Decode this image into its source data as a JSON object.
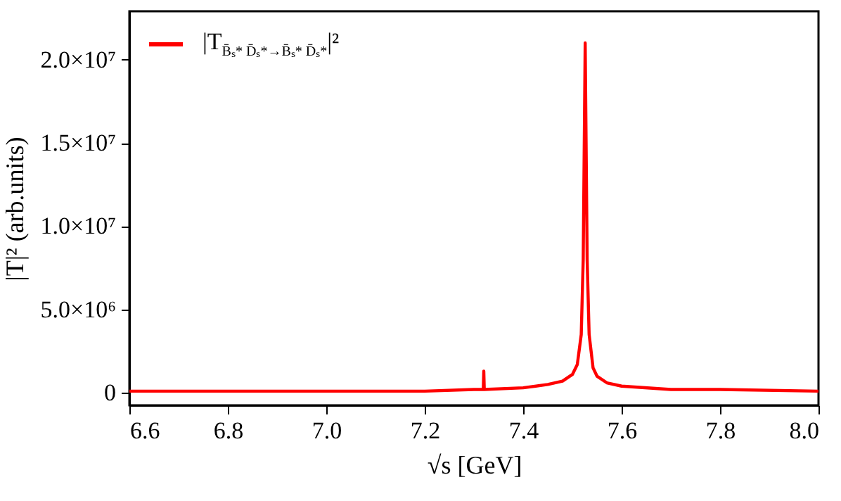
{
  "chart_data": {
    "type": "line",
    "xlabel": "√s [GeV]",
    "ylabel": "|T|² (arb.units)",
    "x": [
      6.6,
      6.8,
      7.0,
      7.2,
      7.3,
      7.319,
      7.32,
      7.321,
      7.4,
      7.45,
      7.48,
      7.5,
      7.51,
      7.518,
      7.522,
      7.526,
      7.53,
      7.534,
      7.542,
      7.55,
      7.57,
      7.6,
      7.7,
      7.8,
      8.0
    ],
    "series": [
      {
        "name": "|T$_{B̄ₛ* D̄ₛ*→B̄ₛ* D̄ₛ*}$|²",
        "color": "#ff0000",
        "values": [
          100000,
          100000,
          100000,
          100000,
          200000,
          200000,
          1300000,
          200000,
          300000,
          500000,
          700000,
          1100000,
          1700000,
          3500000,
          8000000,
          21000000,
          8000000,
          3500000,
          1500000,
          1000000,
          600000,
          400000,
          200000,
          200000,
          100000
        ]
      }
    ],
    "xlim": [
      6.6,
      8.0
    ],
    "xticks": [
      6.6,
      6.8,
      {
        "value": 7,
        "label": "7.0"
      },
      7.2,
      7.4,
      7.6,
      7.8,
      {
        "value": 8,
        "label": "8.0"
      }
    ],
    "ylim": [
      -750000,
      22900000
    ],
    "yticks": [
      0,
      {
        "value": 5000000,
        "label": "5.0×10⁶"
      },
      {
        "value": 10000000,
        "label": "1.0×10⁷"
      },
      {
        "value": 15000000,
        "label": "1.5×10⁷"
      },
      {
        "value": 20000000,
        "label": "2.0×10⁷"
      }
    ],
    "grid": false,
    "legend": "top left",
    "line_style": "solid",
    "marker": "none"
  }
}
